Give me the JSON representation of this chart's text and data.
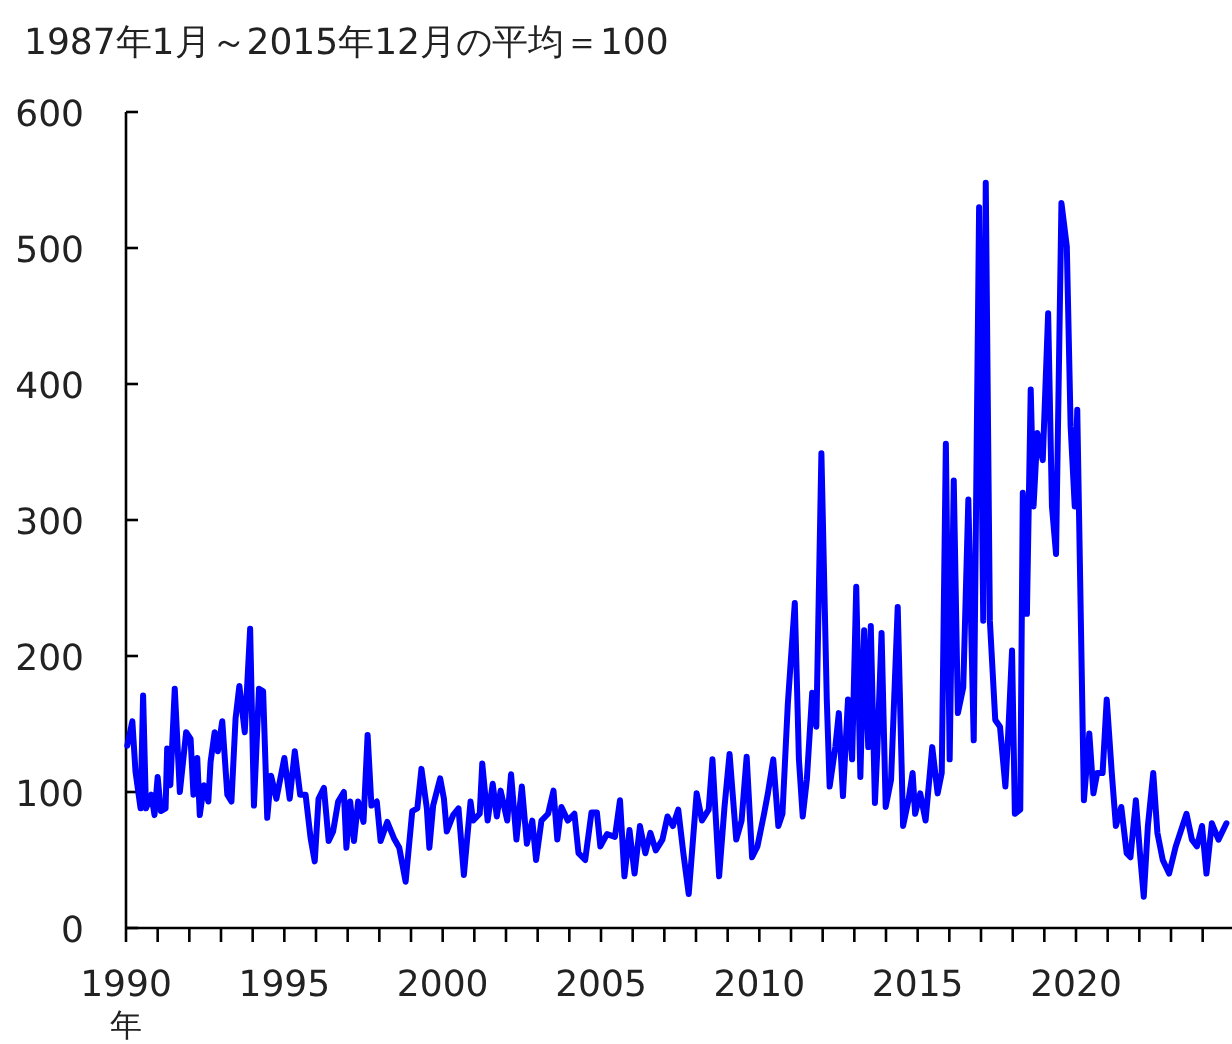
{
  "chart_data": {
    "type": "line",
    "title": "1987年1月～2015年12月の平均＝100",
    "xlabel": "年",
    "x": [
      1990.04,
      1990.2,
      1990.3,
      1990.46,
      1990.54,
      1990.63,
      1990.8,
      1990.9,
      1991.0,
      1991.1,
      1991.25,
      1991.3,
      1991.4,
      1991.54,
      1991.7,
      1991.9,
      1992.04,
      1992.13,
      1992.25,
      1992.33,
      1992.46,
      1992.6,
      1992.67,
      1992.8,
      1992.9,
      1993.04,
      1993.2,
      1993.33,
      1993.46,
      1993.58,
      1993.75,
      1993.92,
      1994.04,
      1994.2,
      1994.33,
      1994.46,
      1994.58,
      1994.75,
      1995.0,
      1995.17,
      1995.33,
      1995.5,
      1995.67,
      1995.83,
      1995.96,
      1996.08,
      1996.25,
      1996.4,
      1996.54,
      1996.7,
      1996.88,
      1996.96,
      1997.08,
      1997.2,
      1997.33,
      1997.5,
      1997.63,
      1997.75,
      1997.92,
      1998.04,
      1998.25,
      1998.46,
      1998.63,
      1998.83,
      1999.04,
      1999.2,
      1999.33,
      1999.5,
      1999.58,
      1999.7,
      1999.92,
      2000.04,
      2000.13,
      2000.33,
      2000.5,
      2000.67,
      2000.88,
      2000.96,
      2001.17,
      2001.25,
      2001.42,
      2001.58,
      2001.71,
      2001.83,
      2002.04,
      2002.16,
      2002.33,
      2002.5,
      2002.66,
      2002.83,
      2002.95,
      2003.12,
      2003.33,
      2003.5,
      2003.62,
      2003.75,
      2003.95,
      2004.16,
      2004.29,
      2004.5,
      2004.7,
      2004.87,
      2004.98,
      2005.19,
      2005.44,
      2005.6,
      2005.74,
      2005.9,
      2006.06,
      2006.23,
      2006.4,
      2006.56,
      2006.73,
      2006.94,
      2007.1,
      2007.27,
      2007.44,
      2007.6,
      2007.77,
      2008.02,
      2008.19,
      2008.4,
      2008.52,
      2008.73,
      2008.9,
      2009.06,
      2009.27,
      2009.44,
      2009.6,
      2009.77,
      2009.94,
      2010.15,
      2010.27,
      2010.44,
      2010.6,
      2010.73,
      2010.9,
      2011.12,
      2011.25,
      2011.37,
      2011.5,
      2011.67,
      2011.8,
      2011.96,
      2012.13,
      2012.22,
      2012.4,
      2012.51,
      2012.64,
      2012.8,
      2012.93,
      2013.06,
      2013.19,
      2013.31,
      2013.44,
      2013.52,
      2013.65,
      2013.73,
      2013.86,
      2013.99,
      2014.16,
      2014.37,
      2014.54,
      2014.71,
      2014.84,
      2014.92,
      2015.08,
      2015.25,
      2015.46,
      2015.63,
      2015.76,
      2015.89,
      2016.01,
      2016.14,
      2016.27,
      2016.44,
      2016.6,
      2016.77,
      2016.94,
      2017.07,
      2017.15,
      2017.28,
      2017.45,
      2017.6,
      2017.77,
      2017.86,
      2017.98,
      2018.07,
      2018.24,
      2018.32,
      2018.45,
      2018.57,
      2018.66,
      2018.78,
      2018.95,
      2019.12,
      2019.24,
      2019.37,
      2019.54,
      2019.71,
      2019.83,
      2019.96,
      2020.04,
      2020.25,
      2020.42,
      2020.55,
      2020.67,
      2020.84,
      2020.97,
      2021.13,
      2021.26,
      2021.43,
      2021.6,
      2021.72,
      2021.89,
      2022.02,
      2022.14,
      2022.27,
      2022.44,
      2022.57,
      2022.74,
      2022.94,
      2023.15,
      2023.49,
      2023.66,
      2023.82,
      2023.98,
      2024.12,
      2024.29,
      2024.5,
      2024.75
    ],
    "values": [
      134,
      152,
      115,
      88,
      171,
      88,
      98,
      83,
      111,
      86,
      88,
      132,
      105,
      176,
      100,
      144,
      139,
      98,
      125,
      83,
      105,
      93,
      122,
      144,
      130,
      152,
      98,
      93,
      154,
      178,
      144,
      220,
      90,
      176,
      174,
      81,
      112,
      95,
      125,
      95,
      130,
      98,
      98,
      66,
      49,
      95,
      103,
      64,
      71,
      93,
      100,
      59,
      93,
      64,
      93,
      78,
      142,
      90,
      93,
      64,
      78,
      66,
      59,
      34,
      86,
      88,
      117,
      88,
      59,
      90,
      110,
      95,
      71,
      83,
      88,
      39,
      93,
      79,
      84,
      121,
      79,
      106,
      82,
      101,
      79,
      113,
      65,
      104,
      62,
      79,
      50,
      79,
      84,
      101,
      65,
      89,
      79,
      84,
      55,
      50,
      85,
      85,
      60,
      69,
      67,
      94,
      38,
      72,
      40,
      75,
      55,
      70,
      57,
      65,
      82,
      75,
      87,
      55,
      25,
      99,
      79,
      87,
      124,
      38,
      89,
      128,
      65,
      79,
      126,
      52,
      60,
      84,
      99,
      124,
      75,
      84,
      165,
      239,
      124,
      82,
      109,
      173,
      148,
      349,
      168,
      104,
      133,
      158,
      97,
      168,
      124,
      251,
      111,
      219,
      133,
      222,
      92,
      133,
      217,
      89,
      109,
      236,
      75,
      94,
      114,
      84,
      99,
      79,
      133,
      99,
      114,
      356,
      124,
      329,
      158,
      177,
      315,
      138,
      530,
      226,
      548,
      226,
      153,
      148,
      104,
      143,
      204,
      84,
      87,
      320,
      231,
      396,
      310,
      364,
      344,
      452,
      310,
      275,
      533,
      501,
      369,
      310,
      381,
      94,
      143,
      99,
      114,
      114,
      168,
      114,
      75,
      89,
      55,
      52,
      94,
      55,
      23,
      75,
      114,
      70,
      50,
      40,
      60,
      84,
      65,
      60,
      75,
      40,
      77,
      65,
      77
    ],
    "color": "#0000ff",
    "xlim": [
      1990,
      2024.8
    ],
    "xticks": [
      1990,
      {
        "value": 1991,
        "label": null
      },
      {
        "value": 1992,
        "label": null
      },
      {
        "value": 1993,
        "label": null
      },
      {
        "value": 1994,
        "label": null
      },
      1995,
      {
        "value": 1996,
        "label": null
      },
      {
        "value": 1997,
        "label": null
      },
      {
        "value": 1998,
        "label": null
      },
      {
        "value": 1999,
        "label": null
      },
      2000,
      {
        "value": 2001,
        "label": null
      },
      {
        "value": 2002,
        "label": null
      },
      {
        "value": 2003,
        "label": null
      },
      {
        "value": 2004,
        "label": null
      },
      2005,
      {
        "value": 2006,
        "label": null
      },
      {
        "value": 2007,
        "label": null
      },
      {
        "value": 2008,
        "label": null
      },
      {
        "value": 2009,
        "label": null
      },
      2010,
      {
        "value": 2011,
        "label": null
      },
      {
        "value": 2012,
        "label": null
      },
      {
        "value": 2013,
        "label": null
      },
      {
        "value": 2014,
        "label": null
      },
      2015,
      {
        "value": 2016,
        "label": null
      },
      {
        "value": 2017,
        "label": null
      },
      {
        "value": 2018,
        "label": null
      },
      {
        "value": 2019,
        "label": null
      },
      2020,
      {
        "value": 2021,
        "label": null
      },
      {
        "value": 2022,
        "label": null
      },
      {
        "value": 2023,
        "label": null
      },
      {
        "value": 2024,
        "label": null
      }
    ],
    "ylim": [
      0,
      600
    ],
    "yticks": [
      0,
      100,
      200,
      300,
      400,
      500,
      600
    ],
    "grid": false,
    "marker": "none",
    "line_style": "solid"
  }
}
